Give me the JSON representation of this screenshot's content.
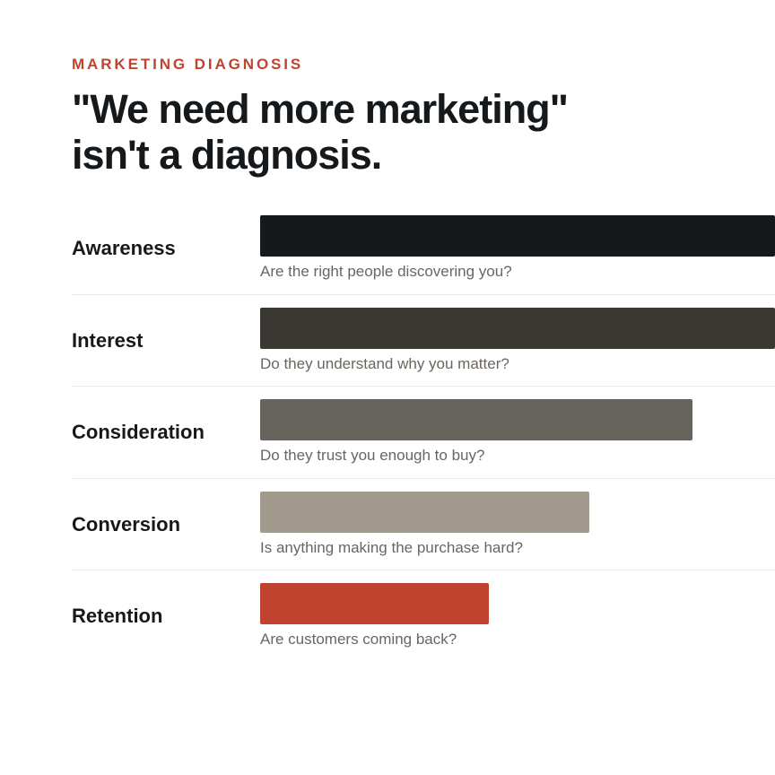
{
  "header": {
    "eyebrow": "MARKETING DIAGNOSIS",
    "headline_line1": "\"We need more marketing\"",
    "headline_line2": "isn't a diagnosis."
  },
  "colors": {
    "accent": "#c0432f",
    "text": "#16191c",
    "muted": "#6b6560"
  },
  "stages": [
    {
      "label": "Awareness",
      "question": "Are the right people discovering you?",
      "level": 1.0,
      "color": "#16191c"
    },
    {
      "label": "Interest",
      "question": "Do they understand why you matter?",
      "level": 1.0,
      "color": "#3b3834"
    },
    {
      "label": "Consideration",
      "question": "Do they trust you enough to buy?",
      "level": 0.84,
      "color": "#67635d"
    },
    {
      "label": "Conversion",
      "question": "Is anything making the purchase hard?",
      "level": 0.64,
      "color": "#a39a8e"
    },
    {
      "label": "Retention",
      "question": "Are customers coming back?",
      "level": 0.445,
      "color": "#c0432f"
    }
  ]
}
